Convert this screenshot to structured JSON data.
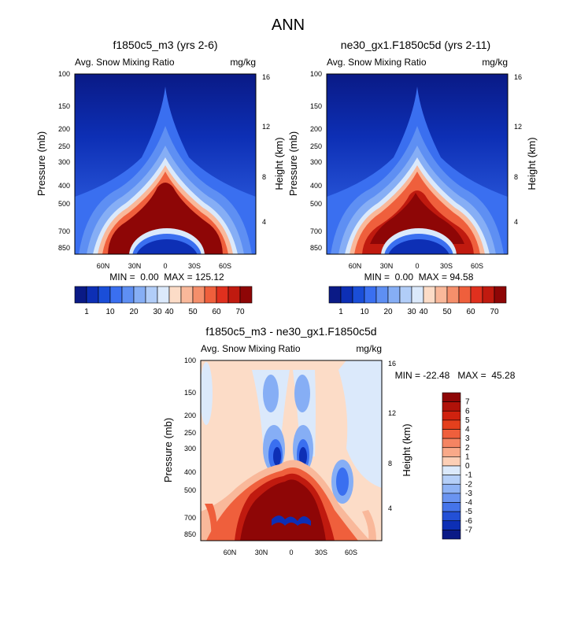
{
  "figure_title": "ANN",
  "chart_data": [
    {
      "type": "heatmap",
      "title": "f1850c5_m3 (yrs 2-6)",
      "left_label": "Avg. Snow Mixing Ratio",
      "right_label": "mg/kg",
      "ylabel": "Pressure (mb)",
      "ylabel_right": "Height (km)",
      "xticks": [
        "60N",
        "30N",
        "0",
        "30S",
        "60S"
      ],
      "yticks": [
        "100",
        "150",
        "200",
        "250",
        "300",
        "400",
        "500",
        "700",
        "850"
      ],
      "yticks_right": [
        "16",
        "12",
        "8",
        "4"
      ],
      "stats": "MIN =  0.00  MAX = 125.12",
      "min": 0.0,
      "max": 125.12,
      "colorbar_labels": [
        "1",
        "10",
        "20",
        "30",
        "40",
        "50",
        "60",
        "70"
      ],
      "colorbar_colors": [
        "#0a1a86",
        "#0d2fb5",
        "#1a4ed8",
        "#3a6ff0",
        "#5e8ff3",
        "#86aef5",
        "#b1cdf8",
        "#dbe9fb",
        "#fcdcc7",
        "#f9b89a",
        "#f58f6b",
        "#ef5f3c",
        "#e0301e",
        "#c01a0f",
        "#8e0606"
      ]
    },
    {
      "type": "heatmap",
      "title": "ne30_gx1.F1850c5d (yrs 2-11)",
      "left_label": "Avg. Snow Mixing Ratio",
      "right_label": "mg/kg",
      "ylabel": "Pressure (mb)",
      "ylabel_right": "Height (km)",
      "xticks": [
        "60N",
        "30N",
        "0",
        "30S",
        "60S"
      ],
      "yticks": [
        "100",
        "150",
        "200",
        "250",
        "300",
        "400",
        "500",
        "700",
        "850"
      ],
      "yticks_right": [
        "16",
        "12",
        "8",
        "4"
      ],
      "stats": "MIN =  0.00  MAX = 94.58",
      "min": 0.0,
      "max": 94.58,
      "colorbar_labels": [
        "1",
        "10",
        "20",
        "30",
        "40",
        "50",
        "60",
        "70"
      ],
      "colorbar_colors": [
        "#0a1a86",
        "#0d2fb5",
        "#1a4ed8",
        "#3a6ff0",
        "#5e8ff3",
        "#86aef5",
        "#b1cdf8",
        "#dbe9fb",
        "#fcdcc7",
        "#f9b89a",
        "#f58f6b",
        "#ef5f3c",
        "#e0301e",
        "#c01a0f",
        "#8e0606"
      ]
    },
    {
      "type": "heatmap",
      "title": "f1850c5_m3 - ne30_gx1.F1850c5d",
      "left_label": "Avg. Snow Mixing Ratio",
      "right_label": "mg/kg",
      "ylabel": "Pressure (mb)",
      "ylabel_right": "Height (km)",
      "xticks": [
        "60N",
        "30N",
        "0",
        "30S",
        "60S"
      ],
      "yticks": [
        "100",
        "150",
        "200",
        "250",
        "300",
        "400",
        "500",
        "700",
        "850"
      ],
      "yticks_right": [
        "16",
        "12",
        "8",
        "4"
      ],
      "stats": "MIN = -22.48   MAX =  45.28",
      "min": -22.48,
      "max": 45.28,
      "colorbar_labels": [
        "7",
        "6",
        "5",
        "4",
        "3",
        "2",
        "1",
        "0",
        "-1",
        "-2",
        "-3",
        "-4",
        "-5",
        "-6",
        "-7"
      ],
      "colorbar_colors": [
        "#8e0606",
        "#b01209",
        "#d0220f",
        "#e4401d",
        "#ef5f3c",
        "#f58462",
        "#f9a989",
        "#fccfb6",
        "#dbe9fb",
        "#b5cff8",
        "#8fb3f5",
        "#6a94f1",
        "#4574ea",
        "#2350d6",
        "#0d2fb5",
        "#0a1a86"
      ]
    }
  ]
}
